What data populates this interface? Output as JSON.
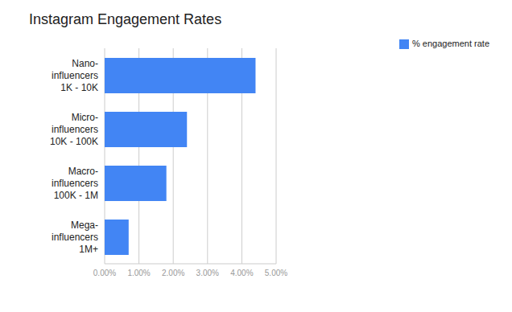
{
  "chart_data": {
    "type": "bar",
    "title": "Instagram Engagement Rates",
    "orientation": "horizontal",
    "categories": [
      "Nano-\ninfluencers\n1K - 10K",
      "Micro-\ninfluencers\n10K - 100K",
      "Macro-\ninfluencers\n100K - 1M",
      "Mega-\ninfluencers\n1M+"
    ],
    "series": [
      {
        "name": "% engagement rate",
        "color": "#4285f4",
        "values": [
          4.4,
          2.4,
          1.8,
          0.7
        ]
      }
    ],
    "xlim": [
      0,
      5
    ],
    "xticks": [
      {
        "value": 0,
        "label": "0.00%"
      },
      {
        "value": 1,
        "label": "1.00%"
      },
      {
        "value": 2,
        "label": "2.00%"
      },
      {
        "value": 3,
        "label": "3.00%"
      },
      {
        "value": 4,
        "label": "4.00%"
      },
      {
        "value": 5,
        "label": "5.00%"
      }
    ],
    "grid": true,
    "legend": "top-right"
  }
}
